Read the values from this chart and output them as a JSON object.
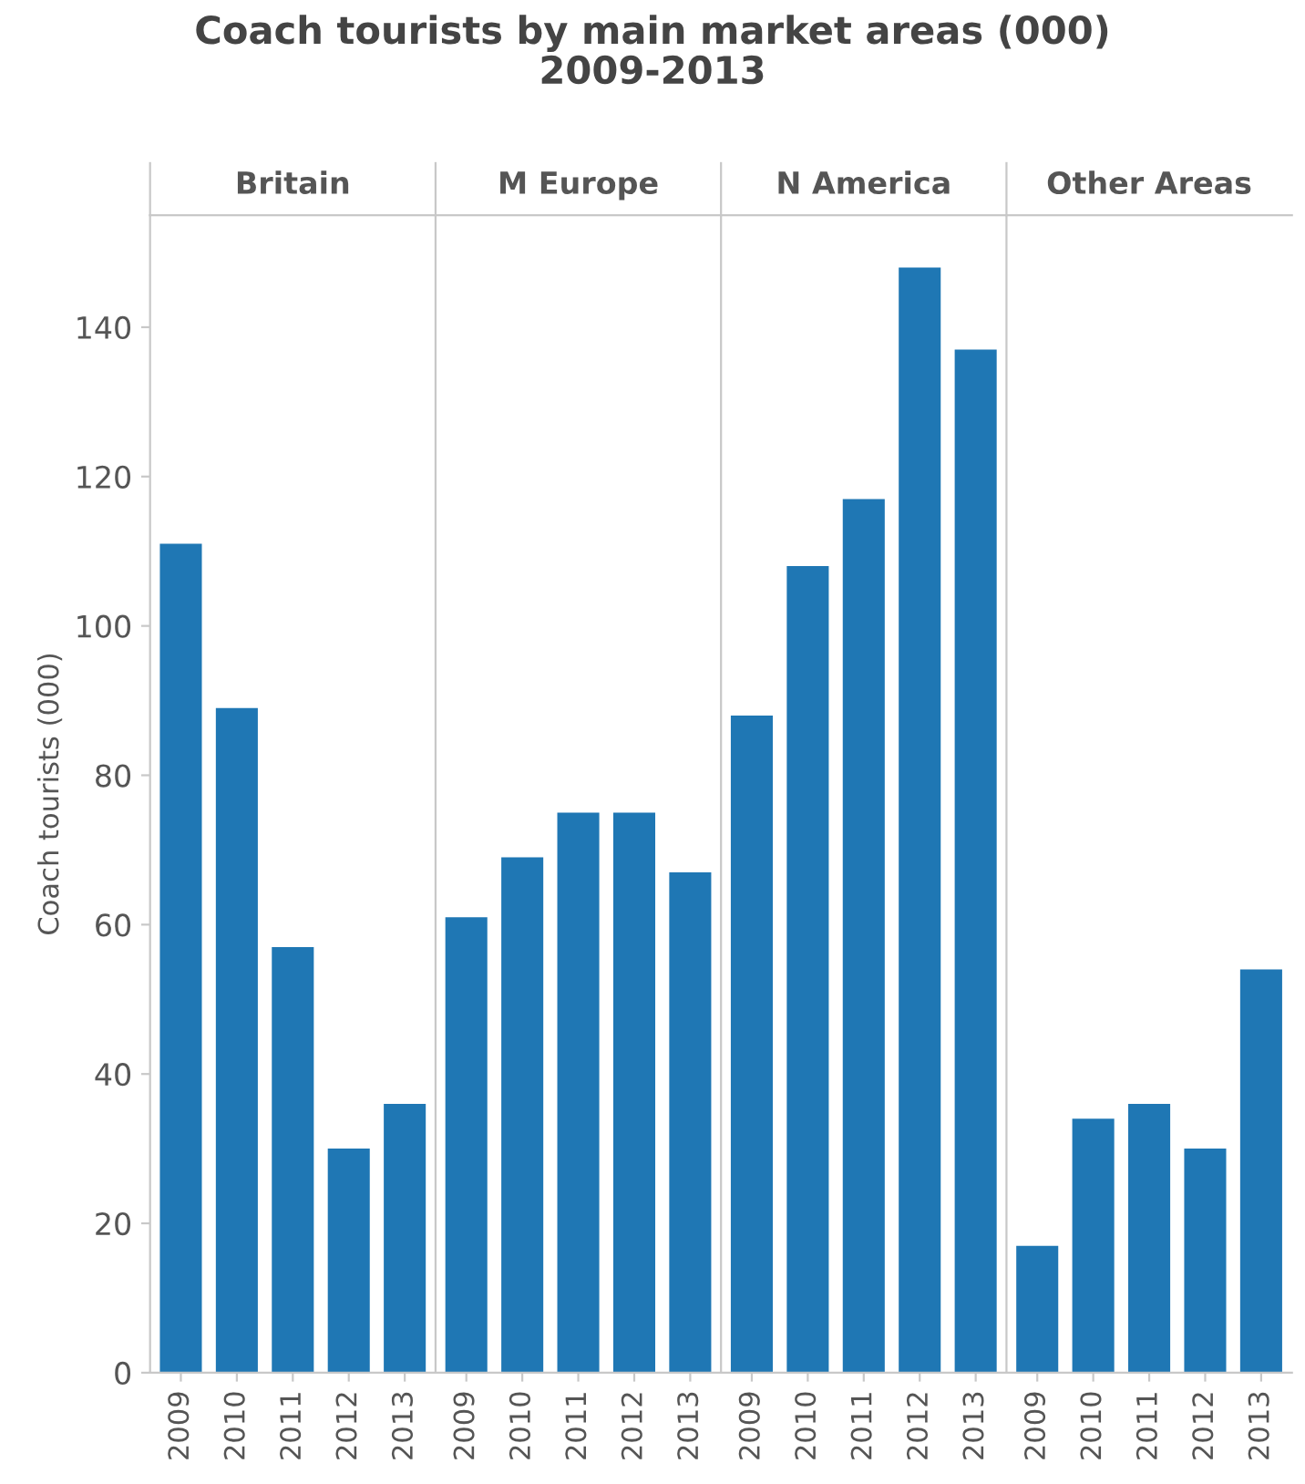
{
  "chart_data": [
    {
      "type": "bar",
      "title": "Coach tourists by main market areas (000)\n2009-2013",
      "subtitle": "Britain",
      "ylabel": "Coach tourists (000)",
      "categories": [
        "2009",
        "2010",
        "2011",
        "2012",
        "2013"
      ],
      "values": [
        111,
        89,
        57,
        30,
        36
      ],
      "color": "#1f77b4",
      "ylim": [
        0,
        155
      ],
      "yticks": [
        0,
        20,
        40,
        60,
        80,
        100,
        120,
        140
      ],
      "grid": false
    },
    {
      "type": "bar",
      "subtitle": "M Europe",
      "categories": [
        "2009",
        "2010",
        "2011",
        "2012",
        "2013"
      ],
      "values": [
        61,
        69,
        75,
        75,
        67
      ],
      "color": "#1f77b4",
      "ylim": [
        0,
        155
      ],
      "tick_labels": "x",
      "grid": false
    },
    {
      "type": "bar",
      "subtitle": "N America",
      "categories": [
        "2009",
        "2010",
        "2011",
        "2012",
        "2013"
      ],
      "values": [
        88,
        108,
        117,
        148,
        137
      ],
      "color": "#1f77b4",
      "ylim": [
        0,
        155
      ],
      "tick_labels": "x",
      "grid": false
    },
    {
      "type": "bar",
      "subtitle": "Other Areas",
      "categories": [
        "2009",
        "2010",
        "2011",
        "2012",
        "2013"
      ],
      "values": [
        17,
        34,
        36,
        30,
        54
      ],
      "color": "#1f77b4",
      "ylim": [
        0,
        155
      ],
      "tick_labels": "x",
      "grid": false
    }
  ]
}
